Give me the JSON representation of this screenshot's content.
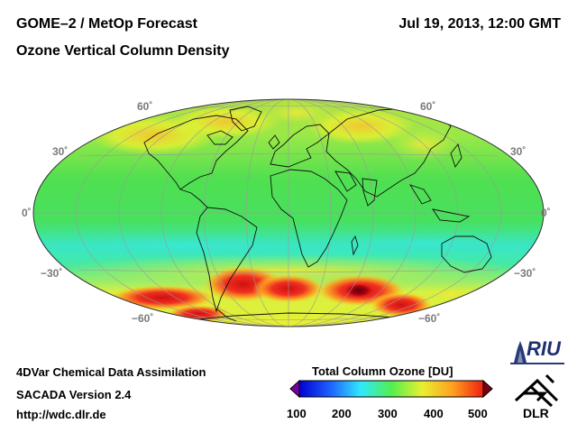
{
  "header": {
    "title": "GOME–2 / MetOp Forecast",
    "subtitle": "Ozone Vertical Column Density",
    "date": "Jul 19, 2013, 12:00 GMT"
  },
  "map": {
    "projection": "Hammer-Aitoff",
    "lat_labels_left": [
      "60˚",
      "30˚",
      "0˚",
      "−30˚",
      "−60˚"
    ],
    "lat_labels_right": [
      "60˚",
      "30˚",
      "0˚",
      "−30˚",
      "−60˚"
    ],
    "ocean_color": "#4fe05a",
    "high_color": "#e01818",
    "low_color": "#38e8e8"
  },
  "footer": {
    "method": "4DVar Chemical Data Assimilation",
    "version": "SACADA Version 2.4",
    "url": "http://wdc.dlr.de"
  },
  "colorbar": {
    "title": "Total Column Ozone [DU]",
    "ticks": [
      "100",
      "200",
      "300",
      "400",
      "500"
    ],
    "min": 100,
    "max": 500,
    "colors": [
      "#7a00a0",
      "#0000d0",
      "#1e60ff",
      "#30e8ff",
      "#50f050",
      "#e8f030",
      "#ffa020",
      "#f02010",
      "#7a0010"
    ]
  },
  "logos": {
    "riu": "RIU",
    "dlr": "DLR"
  }
}
